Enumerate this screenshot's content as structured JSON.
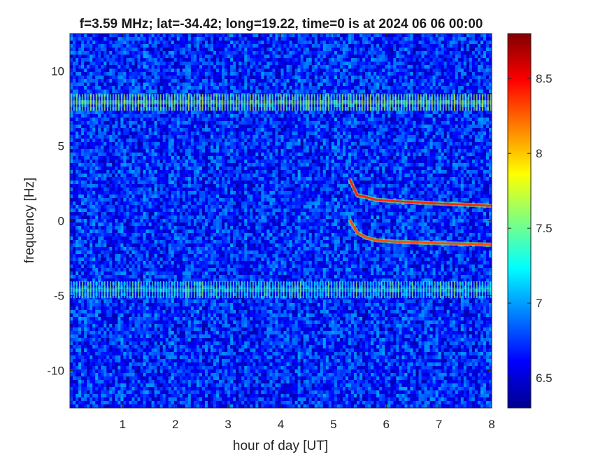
{
  "chart_data": {
    "type": "heatmap",
    "title": "f=3.59 MHz;  lat=-34.42; long=19.22, time=0 is at 2024 06 06 00:00",
    "xlabel": "hour of day [UT]",
    "ylabel": "frequency [Hz]",
    "xlim": [
      0,
      8
    ],
    "ylim": [
      -12.5,
      12.5
    ],
    "x_ticks": [
      1,
      2,
      3,
      4,
      5,
      6,
      7,
      8
    ],
    "x_tick_labels": [
      "1",
      "2",
      "3",
      "4",
      "5",
      "6",
      "7",
      "8"
    ],
    "y_ticks": [
      -10,
      -5,
      0,
      5,
      10
    ],
    "y_tick_labels": [
      "-10",
      "-5",
      "0",
      "5",
      "10"
    ],
    "colorbar": {
      "limits": [
        6.3,
        8.8
      ],
      "ticks": [
        6.5,
        7,
        7.5,
        8,
        8.5
      ],
      "tick_labels": [
        "6.5",
        "7",
        "7.5",
        "8",
        "8.5"
      ],
      "colormap": "jet"
    },
    "features": {
      "background_level": 6.7,
      "horizontal_bands": [
        {
          "frequency": 7.9,
          "level": 7.6
        },
        {
          "frequency": -4.6,
          "level": 7.4
        }
      ],
      "traces": [
        {
          "points": [
            [
              5.3,
              2.8
            ],
            [
              5.45,
              1.7
            ],
            [
              5.6,
              1.6
            ],
            [
              5.8,
              1.4
            ],
            [
              6.2,
              1.3
            ],
            [
              7.0,
              1.15
            ],
            [
              8.0,
              1.0
            ]
          ],
          "level": 8.4
        },
        {
          "points": [
            [
              5.3,
              0.1
            ],
            [
              5.45,
              -0.8
            ],
            [
              5.6,
              -1.1
            ],
            [
              5.8,
              -1.3
            ],
            [
              6.2,
              -1.4
            ],
            [
              7.0,
              -1.5
            ],
            [
              8.0,
              -1.6
            ]
          ],
          "level": 8.3
        }
      ]
    }
  }
}
